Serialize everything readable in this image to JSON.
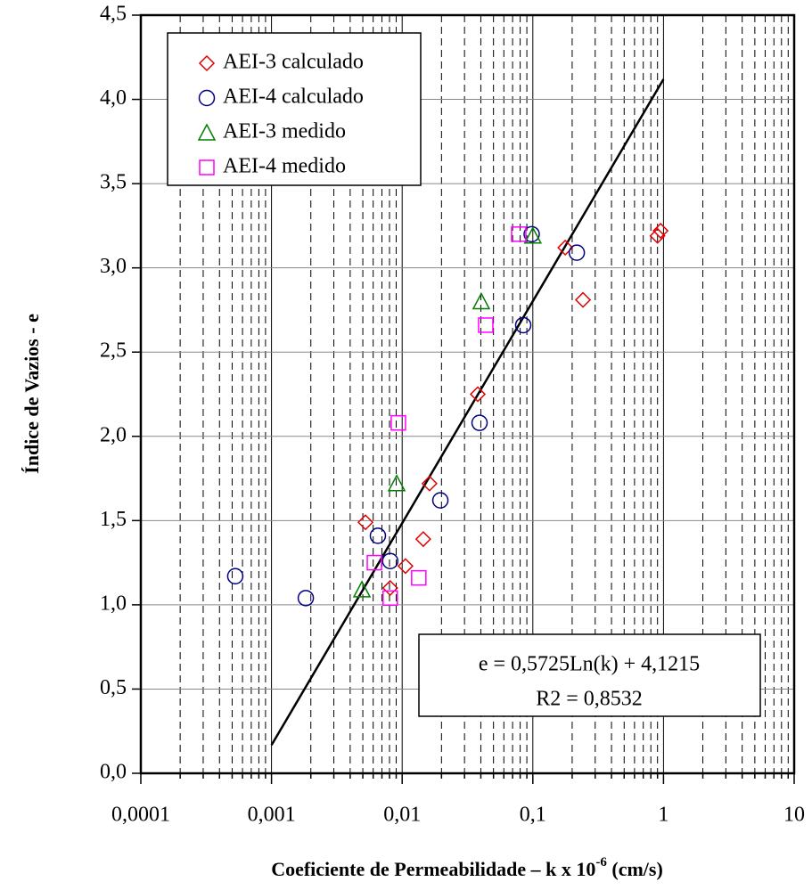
{
  "chart_data": {
    "type": "scatter",
    "xlabel": "Coeficiente de Permeabilidade – k x 10",
    "xlabel_sup": "-6",
    "xlabel_end": " (cm/s)",
    "ylabel": "Índice de Vazios  - e",
    "xscale": "log",
    "xlim": [
      0.0001,
      10
    ],
    "ylim": [
      0,
      4.5
    ],
    "xticks": [
      {
        "value": 0.0001,
        "label": "0,0001"
      },
      {
        "value": 0.001,
        "label": "0,001"
      },
      {
        "value": 0.01,
        "label": "0,01"
      },
      {
        "value": 0.1,
        "label": "0,1"
      },
      1,
      10
    ],
    "xminor_ticks": [
      0.0002,
      0.0003,
      0.0004,
      0.0005,
      0.0006,
      0.0007,
      0.0008,
      0.0009,
      0.002,
      0.003,
      0.004,
      0.005,
      0.006,
      0.007,
      0.008,
      0.009,
      0.02,
      0.03,
      0.04,
      0.05,
      0.06,
      0.07,
      0.08,
      0.09,
      0.2,
      0.3,
      0.4,
      0.5,
      0.6,
      0.7,
      0.8,
      0.9,
      2,
      3,
      4,
      5,
      6,
      7,
      8,
      9
    ],
    "yticks": [
      {
        "value": 0,
        "label": "0,0"
      },
      {
        "value": 0.5,
        "label": "0,5"
      },
      {
        "value": 1,
        "label": "1,0"
      },
      {
        "value": 1.5,
        "label": "1,5"
      },
      {
        "value": 2,
        "label": "2,0"
      },
      {
        "value": 2.5,
        "label": "2,5"
      },
      {
        "value": 3,
        "label": "3,0"
      },
      {
        "value": 3.5,
        "label": "3,5"
      },
      {
        "value": 4,
        "label": "4,0"
      },
      {
        "value": 4.5,
        "label": "4,5"
      }
    ],
    "grid": true,
    "legend": "top-left",
    "series": [
      {
        "name": "AEI-3 calculado",
        "color": "#e00000",
        "marker": "diamond",
        "x": [
          0.00524,
          0.0081,
          0.0106,
          0.0145,
          0.0162,
          0.0379,
          0.177,
          0.242,
          0.9,
          0.95
        ],
        "values": [
          1.49,
          1.1,
          1.23,
          1.39,
          1.72,
          2.25,
          3.12,
          2.81,
          3.19,
          3.22
        ]
      },
      {
        "name": "AEI-4 calculado",
        "color": "#000080",
        "marker": "circle",
        "x": [
          0.000528,
          0.00183,
          0.00652,
          0.0081,
          0.0196,
          0.0391,
          0.0844,
          0.098,
          0.217
        ],
        "values": [
          1.17,
          1.04,
          1.41,
          1.26,
          1.62,
          2.08,
          2.66,
          3.2,
          3.09
        ]
      },
      {
        "name": "AEI-3 medido",
        "color": "#008000",
        "marker": "triangle",
        "x": [
          0.00492,
          0.00908,
          0.0403,
          0.1
        ],
        "values": [
          1.09,
          1.72,
          2.8,
          3.19
        ]
      },
      {
        "name": "AEI-4 medido",
        "color": "#ff00ff",
        "marker": "square",
        "x": [
          0.00613,
          0.0081,
          0.00935,
          0.0134,
          0.0436,
          0.078
        ],
        "values": [
          1.25,
          1.04,
          2.08,
          1.16,
          2.66,
          3.2
        ]
      }
    ],
    "trendline": {
      "color": "#000000",
      "x": [
        0.001,
        1
      ],
      "values": [
        0.167,
        4.12
      ]
    },
    "annotation": [
      "e = 0,5725Ln(k) + 4,1215",
      "R2 = 0,8532"
    ]
  }
}
